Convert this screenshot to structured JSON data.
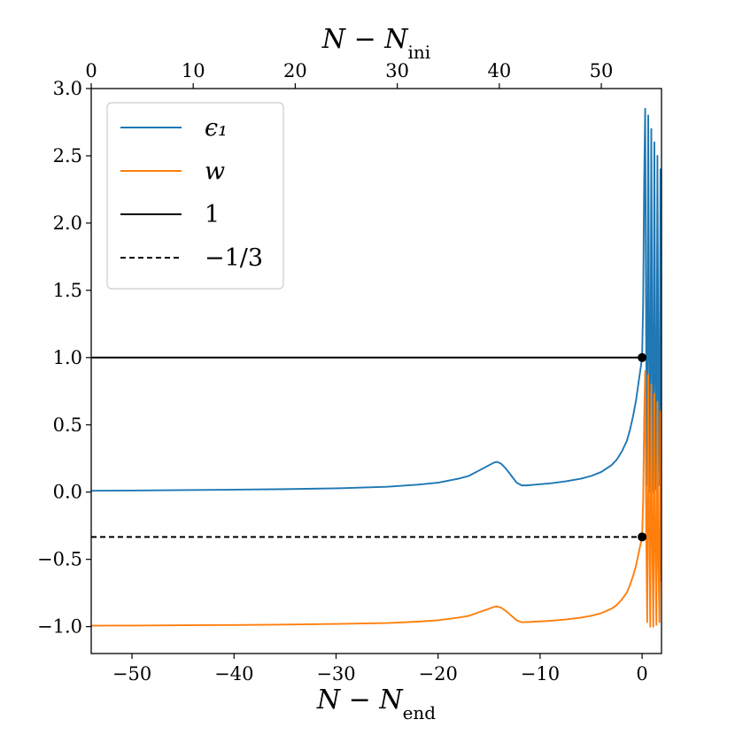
{
  "chart_data": {
    "type": "line",
    "xlabel_bottom": "N − N",
    "xlabel_bottom_sub": "end",
    "xlabel_top": "N − N",
    "xlabel_top_sub": "ini",
    "xlim": [
      -54.0,
      1.9
    ],
    "ylim": [
      -1.2,
      3.0
    ],
    "x_ticks": [
      -50,
      -40,
      -30,
      -20,
      -10,
      0
    ],
    "x_tick_labels": [
      "−50",
      "−40",
      "−30",
      "−20",
      "−10",
      "0"
    ],
    "top_ticks": [
      0,
      10,
      20,
      30,
      40,
      50
    ],
    "top_tick_labels": [
      "0",
      "10",
      "20",
      "30",
      "40",
      "50"
    ],
    "top_offset": 54.0,
    "y_ticks": [
      -1.0,
      -0.5,
      0.0,
      0.5,
      1.0,
      1.5,
      2.0,
      2.5,
      3.0
    ],
    "y_tick_labels": [
      "−1.0",
      "−0.5",
      "0.0",
      "0.5",
      "1.0",
      "1.5",
      "2.0",
      "2.5",
      "3.0"
    ],
    "grid": false,
    "legend_position": "top-left",
    "legend": [
      {
        "label": "ϵ₁",
        "color": "#1f77b4",
        "style": "solid"
      },
      {
        "label": "w",
        "color": "#ff7f0e",
        "style": "solid"
      },
      {
        "label": "1",
        "color": "#000000",
        "style": "solid"
      },
      {
        "label": "−1/3",
        "color": "#000000",
        "style": "dashed"
      }
    ],
    "series": [
      {
        "name": "ϵ₁",
        "color": "#1f77b4",
        "x": [
          -54,
          -50,
          -45,
          -40,
          -35,
          -30,
          -25,
          -22,
          -20,
          -18,
          -17,
          -16,
          -15,
          -14.5,
          -14.2,
          -13.8,
          -13.3,
          -12.8,
          -12.3,
          -11.8,
          -11.3,
          -10.5,
          -9,
          -7.5,
          -6,
          -5,
          -4,
          -3,
          -2.5,
          -2,
          -1.5,
          -1.2,
          -0.9,
          -0.6,
          -0.3,
          0,
          0.1,
          0.2,
          0.3,
          0.4,
          0.5,
          0.6,
          0.7,
          0.8,
          0.9,
          1.0,
          1.1,
          1.2,
          1.3,
          1.4,
          1.5,
          1.6,
          1.7,
          1.8,
          1.9
        ],
        "y": [
          0.01,
          0.012,
          0.015,
          0.018,
          0.022,
          0.028,
          0.04,
          0.055,
          0.07,
          0.1,
          0.12,
          0.16,
          0.2,
          0.22,
          0.225,
          0.21,
          0.17,
          0.12,
          0.07,
          0.05,
          0.05,
          0.055,
          0.065,
          0.08,
          0.1,
          0.12,
          0.15,
          0.2,
          0.24,
          0.3,
          0.38,
          0.46,
          0.56,
          0.68,
          0.84,
          1.0,
          1.4,
          2.3,
          2.85,
          1.1,
          0.05,
          2.8,
          1.0,
          0.0,
          2.7,
          0.9,
          0.0,
          2.6,
          0.8,
          0.02,
          2.5,
          0.7,
          0.05,
          2.4,
          0.5
        ]
      },
      {
        "name": "w",
        "color": "#ff7f0e",
        "x": [
          -54,
          -50,
          -45,
          -40,
          -35,
          -30,
          -25,
          -22,
          -20,
          -18,
          -17,
          -16,
          -15,
          -14.5,
          -14.2,
          -13.8,
          -13.3,
          -12.8,
          -12.3,
          -11.8,
          -11.3,
          -10.5,
          -9,
          -7.5,
          -6,
          -5,
          -4,
          -3,
          -2.5,
          -2,
          -1.5,
          -1.2,
          -0.9,
          -0.6,
          -0.3,
          0,
          0.1,
          0.2,
          0.3,
          0.4,
          0.5,
          0.6,
          0.7,
          0.8,
          0.9,
          1.0,
          1.1,
          1.2,
          1.3,
          1.4,
          1.5,
          1.6,
          1.7,
          1.8,
          1.9
        ],
        "y": [
          -0.993,
          -0.992,
          -0.99,
          -0.988,
          -0.985,
          -0.98,
          -0.973,
          -0.963,
          -0.953,
          -0.933,
          -0.92,
          -0.893,
          -0.867,
          -0.853,
          -0.85,
          -0.86,
          -0.887,
          -0.92,
          -0.953,
          -0.967,
          -0.967,
          -0.963,
          -0.957,
          -0.947,
          -0.933,
          -0.92,
          -0.9,
          -0.867,
          -0.84,
          -0.8,
          -0.747,
          -0.693,
          -0.627,
          -0.547,
          -0.44,
          -0.333,
          -0.067,
          0.53,
          0.9,
          -0.27,
          -0.967,
          0.87,
          -0.333,
          -1.0,
          0.8,
          -0.4,
          -1.0,
          0.73,
          -0.47,
          -0.987,
          0.67,
          -0.53,
          -0.967,
          0.6,
          -0.667
        ]
      },
      {
        "name": "1",
        "color": "#000000",
        "dashed": false,
        "x": [
          -54,
          0
        ],
        "y": [
          1.0,
          1.0
        ]
      },
      {
        "name": "−1/3",
        "color": "#000000",
        "dashed": true,
        "x": [
          -54,
          0
        ],
        "y": [
          -0.3333,
          -0.3333
        ]
      }
    ],
    "markers": [
      {
        "x": 0,
        "y": 1.0,
        "color": "#000000"
      },
      {
        "x": 0,
        "y": -0.3333,
        "color": "#000000"
      }
    ]
  }
}
